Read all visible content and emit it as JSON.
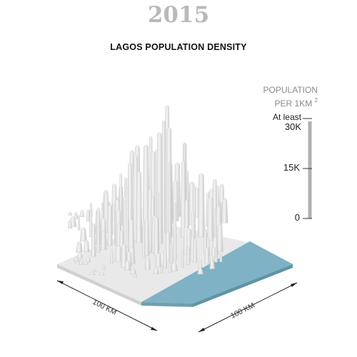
{
  "year": "2015",
  "title": "LAGOS POPULATION DENSITY",
  "legend": {
    "title_line1": "POPULATION",
    "title_line2": "PER 1KM",
    "title_sup": "2",
    "top_label_line1": "At least",
    "top_label_line2": "30K",
    "mid_label": "15K",
    "bottom_label": "0",
    "max_value": 30000,
    "mid_value": 15000,
    "min_value": 0
  },
  "dimensions": {
    "left_edge": "100 KM",
    "right_edge": "100 KM"
  },
  "colors": {
    "terrain": "#e6e6e6",
    "water": "#7fb2c4",
    "year_text": "#b9b9b9"
  }
}
